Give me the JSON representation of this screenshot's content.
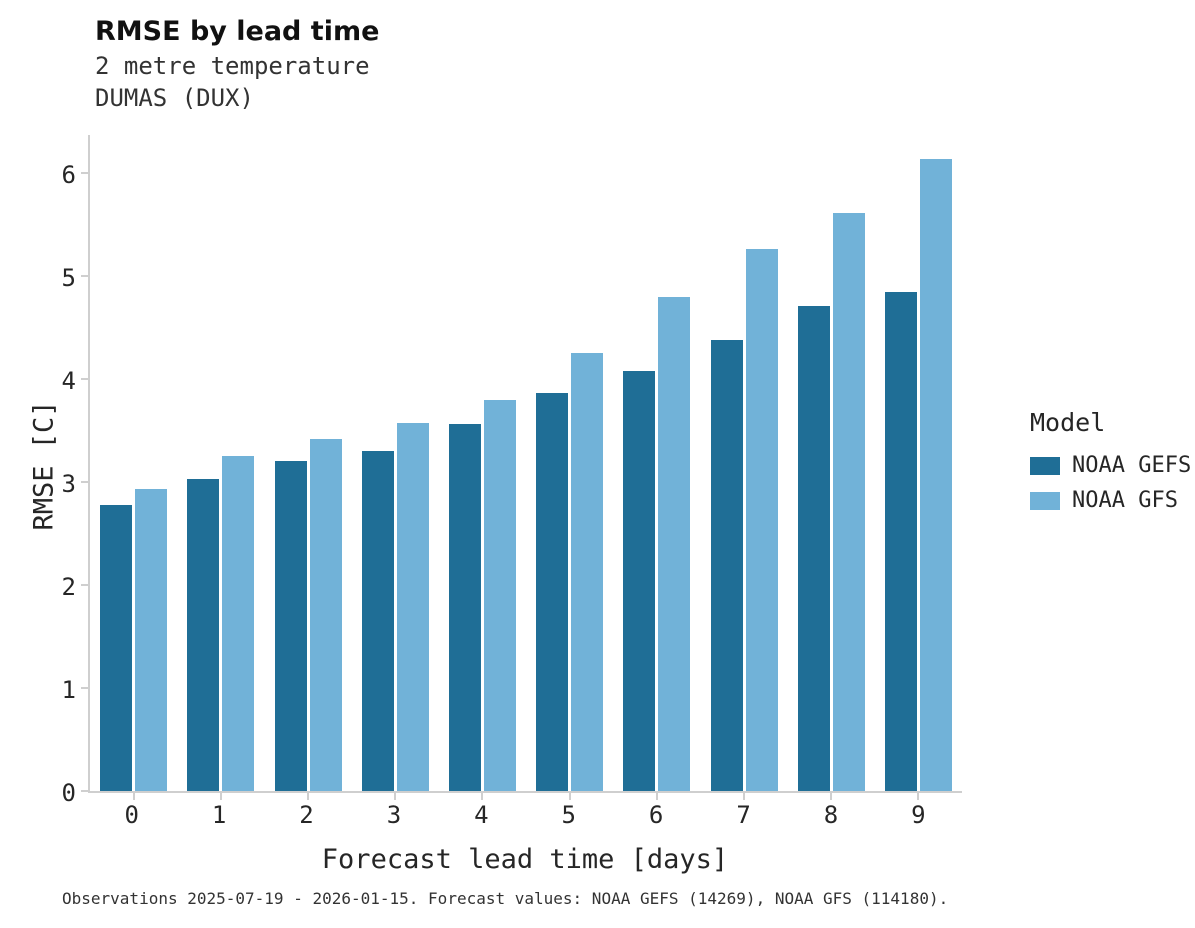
{
  "header": {
    "title": "RMSE by lead time",
    "subtitle1": "2 metre temperature",
    "subtitle2": "DUMAS (DUX)"
  },
  "caption": "Observations 2025-07-19 - 2026-01-15. Forecast values: NOAA GEFS (14269), NOAA GFS (114180).",
  "legend": {
    "title": "Model",
    "entries": [
      {
        "label": "NOAA GEFS",
        "color": "#1f6e96"
      },
      {
        "label": "NOAA GFS",
        "color": "#71b2d8"
      }
    ]
  },
  "chart_data": {
    "type": "bar",
    "title": "RMSE by lead time",
    "subtitle": "2 metre temperature, DUMAS (DUX)",
    "xlabel": "Forecast lead time [days]",
    "ylabel": "RMSE [C]",
    "categories": [
      "0",
      "1",
      "2",
      "3",
      "4",
      "5",
      "6",
      "7",
      "8",
      "9"
    ],
    "series": [
      {
        "name": "NOAA GEFS",
        "color": "#1f6e96",
        "values": [
          2.78,
          3.03,
          3.2,
          3.3,
          3.56,
          3.86,
          4.08,
          4.38,
          4.71,
          4.84
        ]
      },
      {
        "name": "NOAA GFS",
        "color": "#71b2d8",
        "values": [
          2.93,
          3.25,
          3.42,
          3.57,
          3.8,
          4.25,
          4.8,
          5.26,
          5.61,
          6.14
        ]
      }
    ],
    "ylim": [
      0,
      6
    ],
    "yticks": [
      0,
      1,
      2,
      3,
      4,
      5,
      6
    ],
    "grid": false,
    "legend_position": "right"
  }
}
